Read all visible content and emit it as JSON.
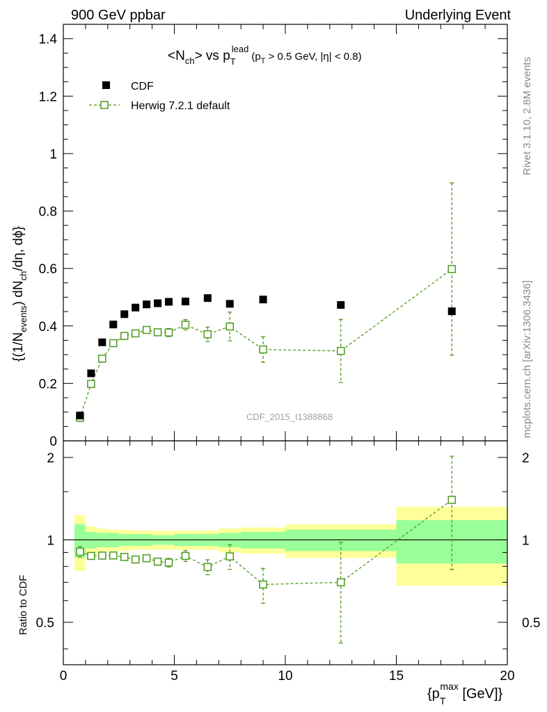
{
  "header": {
    "left": "900 GeV ppbar",
    "right": "Underlying Event"
  },
  "title": {
    "pre": "<N",
    "sub1": "ch",
    "mid": "> vs p",
    "sub2": "T",
    "sup2": "lead",
    "cut1": "(p",
    "cut1_sub": "T",
    "cut1_rest": " > 0.5 GeV, ",
    "cut2": "η| < 0.8)"
  },
  "ylabel_main": {
    "a": "{(1/N",
    "a_sub": "events",
    "b": ") dN",
    "b_sub": "ch",
    "c": "/dη, dϕ}"
  },
  "ylabel_ratio": "Ratio to CDF",
  "xlabel": {
    "a": "{p",
    "a_sub": "T",
    "a_sup": "max",
    "b": " [GeV]}"
  },
  "side_labels": {
    "rivet": "Rivet 3.1.10,  2.8M events",
    "mcplots": "mcplots.cern.ch [arXiv:1306.3436]"
  },
  "watermark": "CDF_2015_I1388868",
  "legend": {
    "cdf": "CDF",
    "herwig": "Herwig 7.2.1 default"
  },
  "colors": {
    "data": "#000000",
    "mc": "#4c9a1a",
    "band_inner": "#99ff99",
    "band_outer": "#ffff99"
  },
  "chart_data": {
    "type": "scatter",
    "xlabel": "{p_T^max [GeV]}",
    "ylabel": "{(1/N_events) dN_ch/dη, dϕ}",
    "xlim": [
      0,
      20
    ],
    "ylim": [
      0,
      1.45
    ],
    "ratio_ylim": [
      0.35,
      2.3
    ],
    "x_ticks": [
      "0",
      "5",
      "10",
      "15",
      "20"
    ],
    "y_ticks": [
      "0",
      "0.2",
      "0.4",
      "0.6",
      "0.8",
      "1",
      "1.2",
      "1.4"
    ],
    "ratio_ticks": [
      "0.5",
      "1",
      "2"
    ],
    "bin_edges": [
      0.5,
      1.0,
      1.5,
      2.0,
      2.5,
      3.0,
      3.5,
      4.0,
      4.5,
      5.0,
      6.0,
      7.0,
      8.0,
      10.0,
      15.0,
      20.0
    ],
    "x": [
      0.75,
      1.25,
      1.75,
      2.25,
      2.75,
      3.25,
      3.75,
      4.25,
      4.75,
      5.5,
      6.5,
      7.5,
      9.0,
      12.5,
      17.5
    ],
    "series": [
      {
        "name": "CDF",
        "values": [
          0.088,
          0.235,
          0.343,
          0.405,
          0.441,
          0.464,
          0.475,
          0.479,
          0.484,
          0.485,
          0.497,
          0.477,
          0.492,
          0.473,
          0.451
        ],
        "rel_err_inner": [
          0.14,
          0.07,
          0.06,
          0.06,
          0.05,
          0.05,
          0.05,
          0.04,
          0.04,
          0.05,
          0.05,
          0.06,
          0.07,
          0.09,
          0.18
        ],
        "rel_err_outer": [
          0.23,
          0.12,
          0.1,
          0.09,
          0.09,
          0.08,
          0.08,
          0.08,
          0.08,
          0.08,
          0.08,
          0.1,
          0.11,
          0.14,
          0.32
        ]
      },
      {
        "name": "Herwig 7.2.1 default",
        "values": [
          0.08,
          0.198,
          0.286,
          0.34,
          0.365,
          0.374,
          0.386,
          0.378,
          0.377,
          0.404,
          0.371,
          0.398,
          0.318,
          0.313,
          0.598
        ],
        "errors": [
          0.006,
          0.008,
          0.008,
          0.009,
          0.01,
          0.01,
          0.012,
          0.012,
          0.014,
          0.018,
          0.025,
          0.05,
          0.045,
          0.11,
          0.3
        ],
        "ratio": [
          0.905,
          0.874,
          0.876,
          0.877,
          0.866,
          0.848,
          0.857,
          0.833,
          0.826,
          0.874,
          0.796,
          0.87,
          0.687,
          0.7,
          1.4
        ],
        "ratio_errors": [
          0.04,
          0.02,
          0.02,
          0.02,
          0.02,
          0.02,
          0.02,
          0.025,
          0.03,
          0.04,
          0.05,
          0.09,
          0.1,
          0.28,
          0.62
        ]
      }
    ]
  }
}
